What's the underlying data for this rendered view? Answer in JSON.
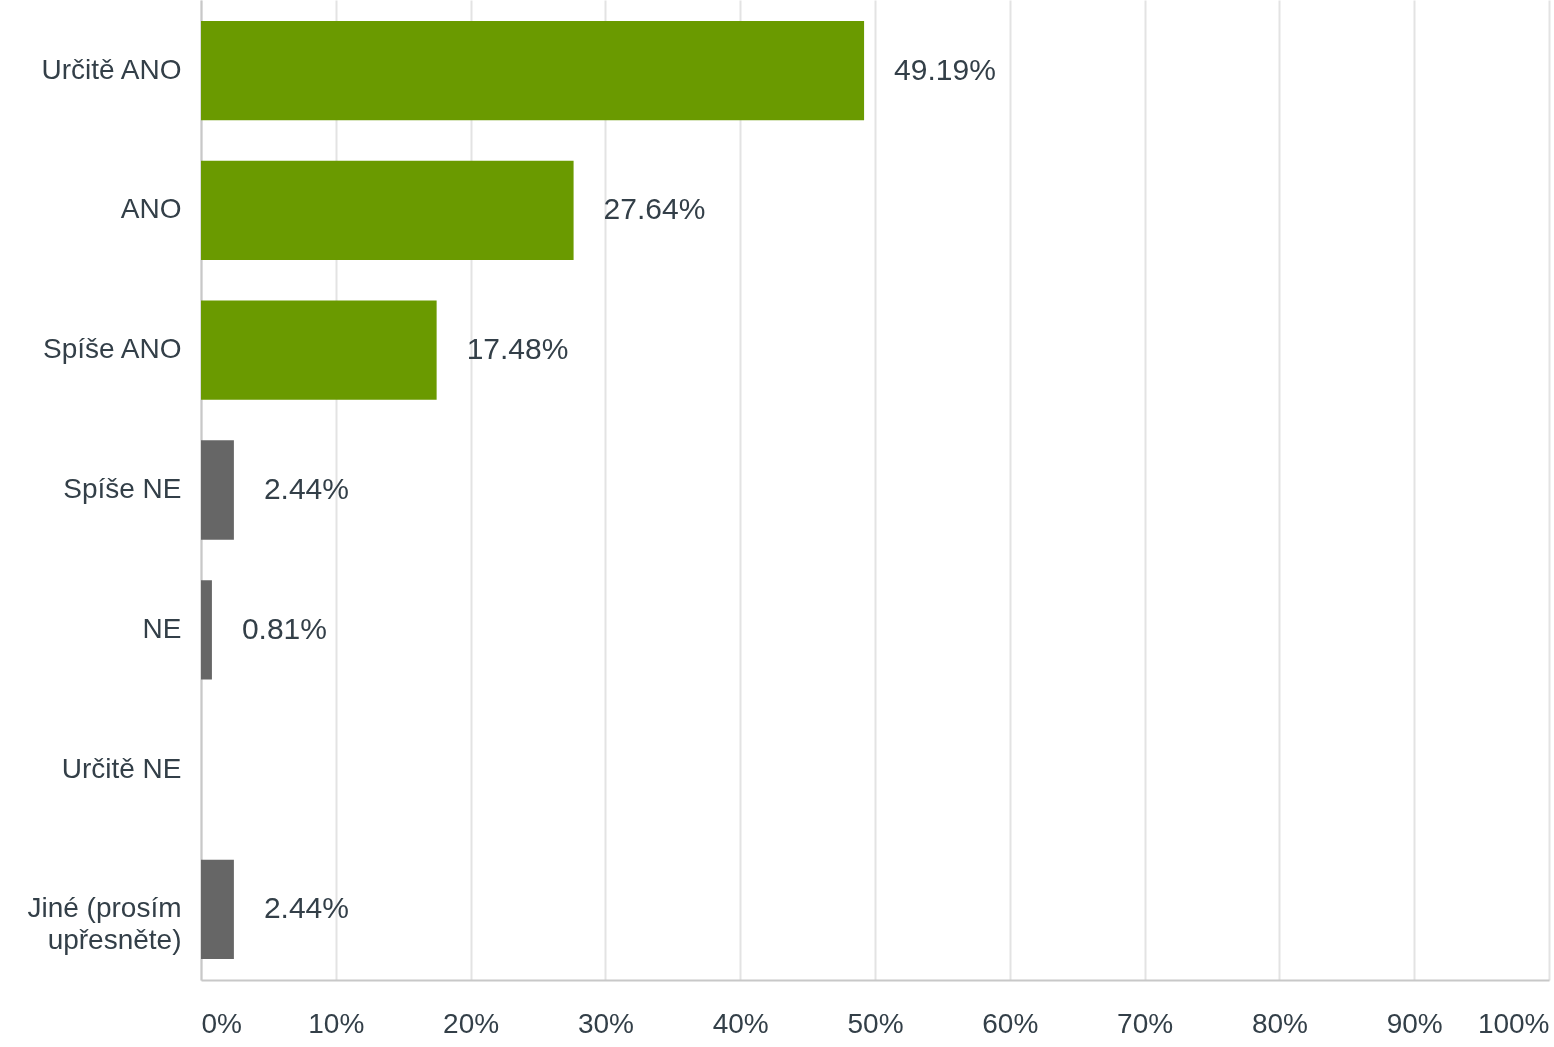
{
  "chart_data": {
    "type": "bar",
    "orientation": "horizontal",
    "categories": [
      "Určitě ANO",
      "ANO",
      "Spíše ANO",
      "Spíše NE",
      "NE",
      "Určitě NE",
      "Jiné (prosím upřesněte)"
    ],
    "values": [
      49.19,
      27.64,
      17.48,
      2.44,
      0.81,
      0,
      2.44
    ],
    "colors": [
      "#6a9a00",
      "#6a9a00",
      "#6a9a00",
      "#666666",
      "#666666",
      "#666666",
      "#666666"
    ],
    "value_labels": [
      "49.19%",
      "27.64%",
      "17.48%",
      "2.44%",
      "0.81%",
      null,
      "2.44%"
    ],
    "xlim": [
      0,
      100
    ],
    "xticks": [
      {
        "value": 0,
        "label": "0%"
      },
      {
        "value": 10,
        "label": "10%"
      },
      {
        "value": 20,
        "label": "20%"
      },
      {
        "value": 30,
        "label": "30%"
      },
      {
        "value": 40,
        "label": "40%"
      },
      {
        "value": 50,
        "label": "50%"
      },
      {
        "value": 60,
        "label": "60%"
      },
      {
        "value": 70,
        "label": "70%"
      },
      {
        "value": 80,
        "label": "80%"
      },
      {
        "value": 90,
        "label": "90%"
      },
      {
        "value": 100,
        "label": "100%"
      }
    ],
    "grid": "x"
  }
}
